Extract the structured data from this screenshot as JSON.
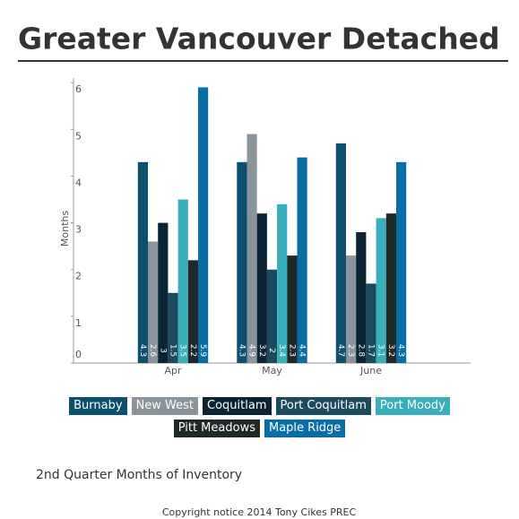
{
  "chart_data": {
    "type": "bar",
    "title": "Greater Vancouver Detached",
    "subtitle": "2nd Quarter Months of Inventory",
    "footer": "Copyright notice 2014 Tony Cikes PREC",
    "y_label": "Months",
    "categories": [
      "Apr",
      "May",
      "June"
    ],
    "series": [
      {
        "name": "Burnaby",
        "color": "#0d4f6f",
        "values": [
          4.3,
          4.3,
          4.7
        ]
      },
      {
        "name": "New West",
        "color": "#8b949b",
        "values": [
          2.6,
          4.9,
          2.3
        ]
      },
      {
        "name": "Coquitlam",
        "color": "#0b2434",
        "values": [
          3,
          3.2,
          2.8
        ]
      },
      {
        "name": "Port Coquitlam",
        "color": "#1c4b5f",
        "values": [
          1.5,
          2,
          1.7
        ]
      },
      {
        "name": "Port Moody",
        "color": "#39afbe",
        "values": [
          3.5,
          3.4,
          3.1
        ]
      },
      {
        "name": "Pitt Meadows",
        "color": "#1f2929",
        "values": [
          2.2,
          2.3,
          3.2
        ]
      },
      {
        "name": "Maple Ridge",
        "color": "#0a6ea6",
        "values": [
          5.9,
          4.4,
          4.3
        ]
      }
    ],
    "ylim": [
      0,
      6.1
    ],
    "yticks": [
      0,
      1,
      2,
      3,
      4,
      5,
      6
    ],
    "grid": false,
    "value_labels_shown": true
  }
}
